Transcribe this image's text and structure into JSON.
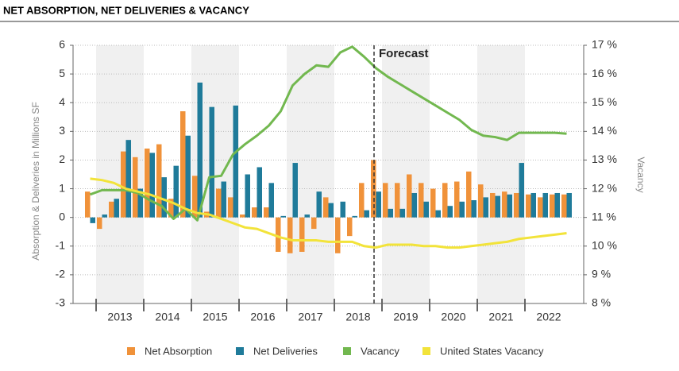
{
  "chart_data": {
    "type": "bar",
    "title": "NET ABSORPTION, NET DELIVERIES & VACANCY",
    "y_label": "Absorption & Deliveries in Millions SF",
    "y2_label": "Vacancy",
    "annotation": "Forecast",
    "categories": [
      null,
      null,
      "2013",
      null,
      null,
      null,
      "2014",
      null,
      null,
      null,
      "2015",
      null,
      null,
      null,
      "2016",
      null,
      null,
      null,
      "2017",
      null,
      null,
      null,
      "2018",
      null,
      null,
      null,
      "2019",
      null,
      null,
      null,
      "2020",
      null,
      null,
      null,
      "2021",
      null,
      null,
      null,
      "2022",
      null,
      null
    ],
    "ylim": [
      -3,
      6
    ],
    "yticks": [
      -3,
      -2,
      -1,
      0,
      1,
      2,
      3,
      4,
      5,
      6
    ],
    "y2lim": [
      8,
      17
    ],
    "y2ticks": [
      {
        "value": 8,
        "label": "8 %"
      },
      {
        "value": 9,
        "label": "9 %"
      },
      {
        "value": 10,
        "label": "10 %"
      },
      {
        "value": 11,
        "label": "11 %"
      },
      {
        "value": 12,
        "label": "12 %"
      },
      {
        "value": 13,
        "label": "13 %"
      },
      {
        "value": 14,
        "label": "14 %"
      },
      {
        "value": 15,
        "label": "15 %"
      },
      {
        "value": 16,
        "label": "16 %"
      },
      {
        "value": 17,
        "label": "17 %"
      }
    ],
    "grid": true,
    "legend": "bottom",
    "series": [
      {
        "name": "Net Absorption",
        "type": "bar",
        "color": "#f0923a",
        "values": [
          0.9,
          -0.4,
          0.55,
          2.3,
          2.1,
          2.4,
          2.55,
          0.65,
          3.7,
          1.45,
          0.2,
          1.0,
          0.7,
          0.1,
          0.35,
          0.35,
          -1.2,
          -1.25,
          -1.2,
          -0.4,
          0.7,
          -1.25,
          -0.65,
          1.2,
          2.0,
          1.2,
          1.2,
          1.5,
          1.2,
          1.0,
          1.2,
          1.25,
          1.6,
          1.15,
          0.85,
          0.9,
          0.85,
          0.8,
          0.7,
          0.8,
          0.8
        ]
      },
      {
        "name": "Net Deliveries",
        "type": "bar",
        "color": "#1f7b9a",
        "values": [
          -0.2,
          0.1,
          0.65,
          2.7,
          1.0,
          2.25,
          1.4,
          1.8,
          2.85,
          4.7,
          3.85,
          1.25,
          3.9,
          1.5,
          1.75,
          1.2,
          0.05,
          1.9,
          0.1,
          0.9,
          0.5,
          0.55,
          0.05,
          0.25,
          0.9,
          0.3,
          0.3,
          0.85,
          0.55,
          0.25,
          0.4,
          0.55,
          0.6,
          0.7,
          0.75,
          0.8,
          1.9,
          0.85,
          0.85,
          0.85,
          0.85
        ]
      },
      {
        "name": "Vacancy",
        "type": "line",
        "axis": "y2",
        "color": "#72b84f",
        "values": [
          11.8,
          11.95,
          11.95,
          11.95,
          11.85,
          11.6,
          11.4,
          10.95,
          11.3,
          10.9,
          12.4,
          12.45,
          13.2,
          13.55,
          13.85,
          14.2,
          14.7,
          15.6,
          16.0,
          16.3,
          16.25,
          16.75,
          16.95,
          16.6,
          16.2,
          15.9,
          15.65,
          15.4,
          15.15,
          14.9,
          14.65,
          14.4,
          14.05,
          13.85,
          13.8,
          13.7,
          13.95,
          13.95,
          13.95,
          13.95,
          13.92
        ]
      },
      {
        "name": "United States Vacancy",
        "type": "line",
        "axis": "y2",
        "color": "#f2e33a",
        "values": [
          12.35,
          12.3,
          12.2,
          12.0,
          11.9,
          11.8,
          11.65,
          11.5,
          11.3,
          11.15,
          11.1,
          10.95,
          10.8,
          10.65,
          10.6,
          10.45,
          10.3,
          10.2,
          10.2,
          10.2,
          10.15,
          10.15,
          10.15,
          10.0,
          9.95,
          10.05,
          10.05,
          10.05,
          10.0,
          10.0,
          9.95,
          9.95,
          10.0,
          10.05,
          10.1,
          10.15,
          10.25,
          10.3,
          10.35,
          10.4,
          10.45
        ]
      }
    ]
  }
}
